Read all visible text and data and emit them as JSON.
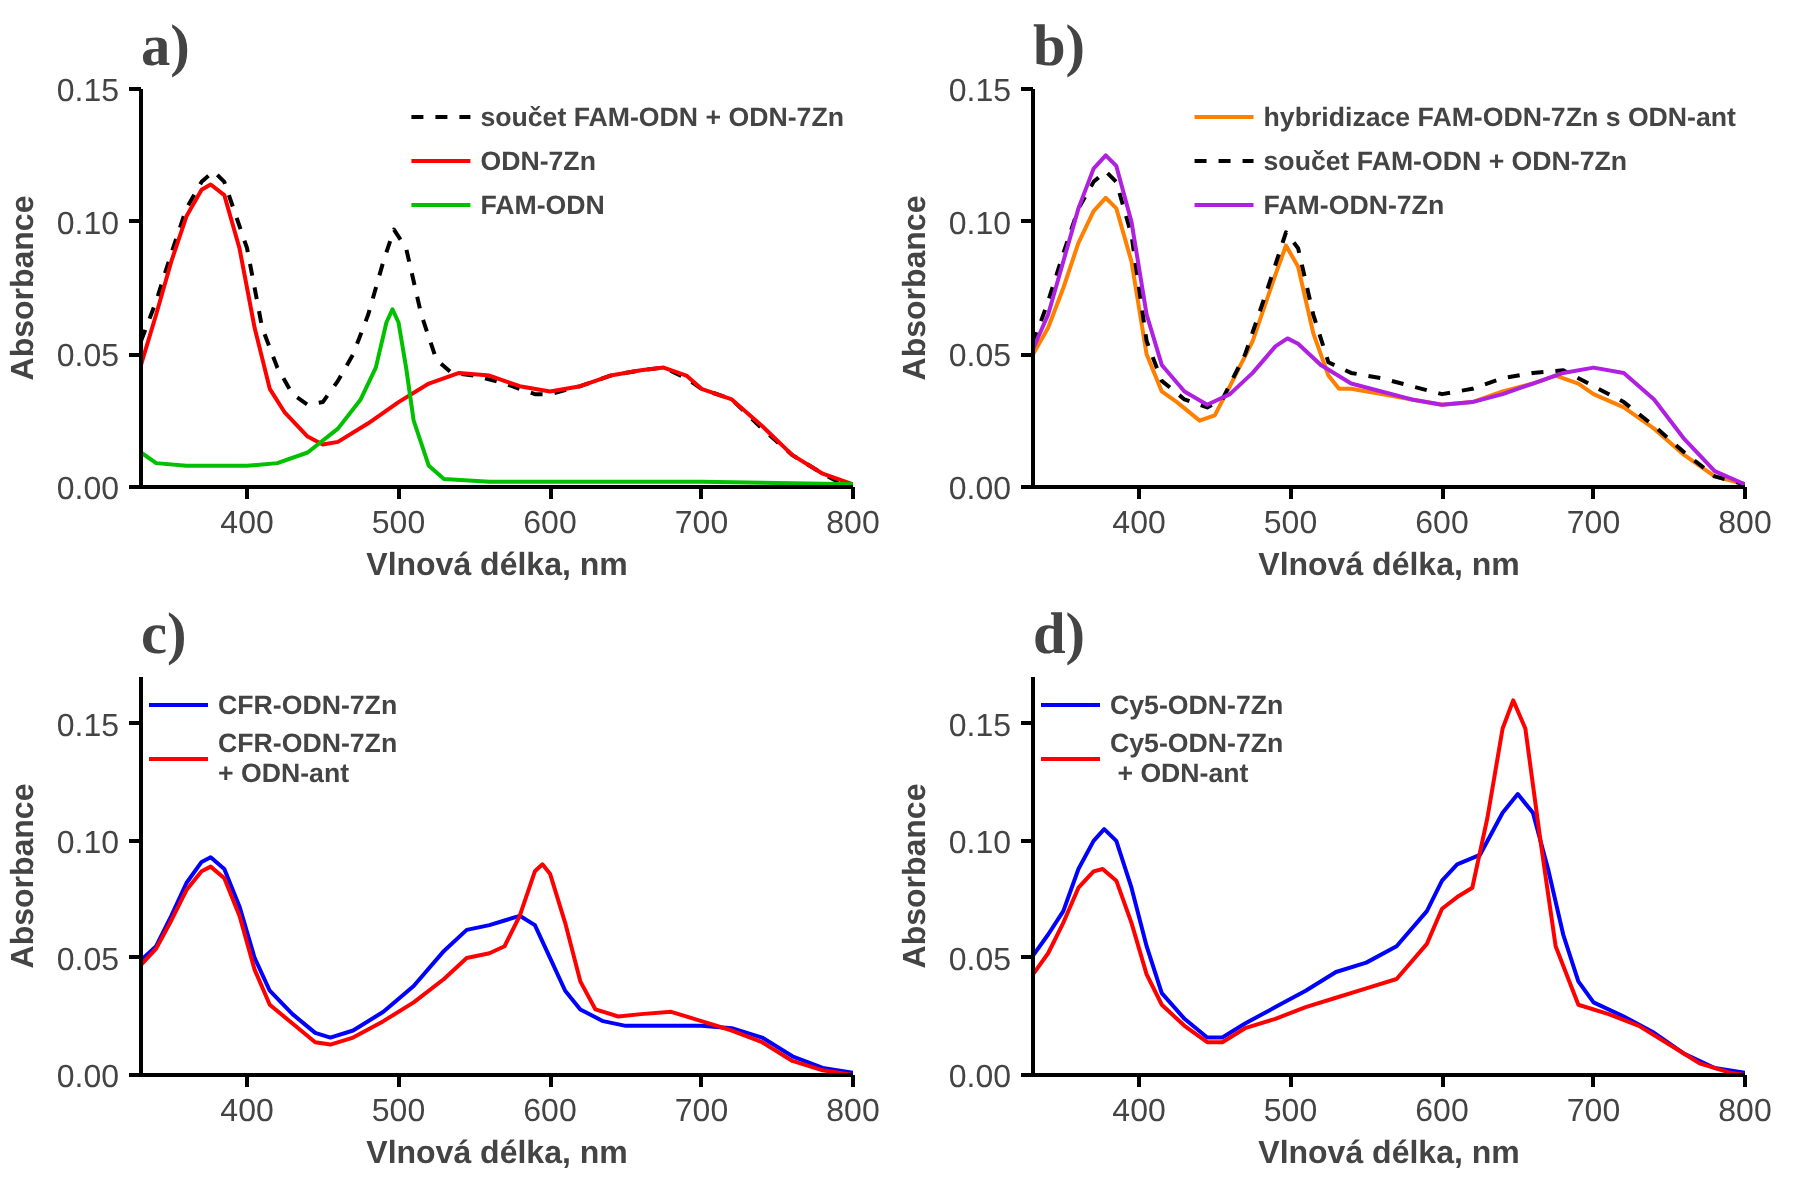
{
  "chart_data": [
    {
      "type": "line",
      "title": "a)",
      "xlabel": "Vlnová délka, nm",
      "ylabel": "Absorbance",
      "xlim": [
        330,
        800
      ],
      "ylim": [
        0,
        0.15
      ],
      "xticks": [
        400,
        500,
        600,
        700,
        800
      ],
      "yticks": [
        {
          "value": 0,
          "label": "0.00"
        },
        {
          "value": 0.05,
          "label": "0.05"
        },
        {
          "value": 0.1,
          "label": "0.10"
        },
        {
          "value": 0.15,
          "label": "0.15"
        }
      ],
      "grid": false,
      "legend": "top right",
      "marker": "none",
      "series": [
        {
          "name": "součet FAM-ODN + ODN-7Zn",
          "color": "#000000",
          "line_style": "dashed",
          "x": [
            330,
            340,
            350,
            360,
            370,
            378,
            385,
            400,
            410,
            420,
            430,
            440,
            450,
            460,
            470,
            480,
            490,
            497,
            505,
            515,
            525,
            535,
            550,
            570,
            590,
            600,
            620,
            640,
            660,
            675,
            690,
            700,
            720,
            740,
            760,
            780,
            790,
            800
          ],
          "values": [
            0.055,
            0.07,
            0.088,
            0.105,
            0.115,
            0.119,
            0.115,
            0.09,
            0.06,
            0.045,
            0.035,
            0.031,
            0.032,
            0.04,
            0.05,
            0.065,
            0.085,
            0.097,
            0.09,
            0.065,
            0.048,
            0.043,
            0.042,
            0.039,
            0.035,
            0.035,
            0.038,
            0.042,
            0.044,
            0.045,
            0.041,
            0.037,
            0.033,
            0.022,
            0.012,
            0.005,
            0.002,
            0.001
          ]
        },
        {
          "name": "ODN-7Zn",
          "color": "#ff0000",
          "line_style": "solid",
          "x": [
            330,
            340,
            350,
            360,
            370,
            376,
            385,
            395,
            405,
            415,
            425,
            440,
            450,
            460,
            480,
            500,
            520,
            540,
            560,
            580,
            600,
            620,
            640,
            660,
            675,
            690,
            700,
            720,
            740,
            760,
            780,
            800
          ],
          "values": [
            0.046,
            0.065,
            0.085,
            0.102,
            0.112,
            0.114,
            0.11,
            0.09,
            0.06,
            0.037,
            0.028,
            0.019,
            0.016,
            0.017,
            0.024,
            0.032,
            0.039,
            0.043,
            0.042,
            0.038,
            0.036,
            0.038,
            0.042,
            0.044,
            0.045,
            0.042,
            0.037,
            0.033,
            0.023,
            0.012,
            0.005,
            0.001
          ]
        },
        {
          "name": "FAM-ODN",
          "color": "#00c000",
          "line_style": "solid",
          "x": [
            330,
            340,
            360,
            380,
            400,
            420,
            440,
            460,
            475,
            485,
            492,
            496,
            500,
            505,
            510,
            520,
            530,
            560,
            600,
            700,
            800
          ],
          "values": [
            0.013,
            0.009,
            0.008,
            0.008,
            0.008,
            0.009,
            0.013,
            0.022,
            0.033,
            0.045,
            0.062,
            0.067,
            0.062,
            0.045,
            0.025,
            0.008,
            0.003,
            0.002,
            0.002,
            0.002,
            0.001
          ]
        }
      ]
    },
    {
      "type": "line",
      "title": "b)",
      "xlabel": "Vlnová délka, nm",
      "ylabel": "Absorbance",
      "xlim": [
        330,
        800
      ],
      "ylim": [
        0,
        0.15
      ],
      "xticks": [
        400,
        500,
        600,
        700,
        800
      ],
      "yticks": [
        {
          "value": 0,
          "label": "0.00"
        },
        {
          "value": 0.05,
          "label": "0.05"
        },
        {
          "value": 0.1,
          "label": "0.10"
        },
        {
          "value": 0.15,
          "label": "0.15"
        }
      ],
      "grid": false,
      "legend": "top right",
      "marker": "none",
      "series": [
        {
          "name": "hybridizace FAM-ODN-7Zn s ODN-ant",
          "color": "#ff8000",
          "line_style": "solid",
          "x": [
            330,
            340,
            350,
            360,
            370,
            378,
            385,
            395,
            405,
            415,
            425,
            440,
            450,
            460,
            475,
            490,
            497,
            505,
            515,
            525,
            532,
            540,
            560,
            580,
            600,
            620,
            640,
            660,
            675,
            690,
            700,
            720,
            740,
            760,
            780,
            800
          ],
          "values": [
            0.05,
            0.06,
            0.075,
            0.092,
            0.104,
            0.109,
            0.105,
            0.085,
            0.05,
            0.036,
            0.032,
            0.025,
            0.027,
            0.038,
            0.055,
            0.08,
            0.091,
            0.083,
            0.058,
            0.042,
            0.037,
            0.037,
            0.035,
            0.033,
            0.031,
            0.032,
            0.036,
            0.039,
            0.042,
            0.039,
            0.035,
            0.03,
            0.022,
            0.012,
            0.004,
            0.001
          ]
        },
        {
          "name": "součet FAM-ODN + ODN-7Zn",
          "color": "#000000",
          "line_style": "dashed",
          "x": [
            330,
            340,
            350,
            360,
            370,
            378,
            385,
            395,
            405,
            415,
            430,
            445,
            455,
            470,
            485,
            497,
            505,
            515,
            525,
            540,
            560,
            580,
            600,
            620,
            640,
            660,
            680,
            700,
            720,
            740,
            760,
            780,
            800
          ],
          "values": [
            0.054,
            0.07,
            0.088,
            0.105,
            0.115,
            0.119,
            0.115,
            0.095,
            0.055,
            0.04,
            0.033,
            0.03,
            0.033,
            0.05,
            0.075,
            0.096,
            0.09,
            0.065,
            0.047,
            0.043,
            0.041,
            0.038,
            0.035,
            0.037,
            0.041,
            0.043,
            0.044,
            0.038,
            0.032,
            0.023,
            0.013,
            0.004,
            0.001
          ]
        },
        {
          "name": "FAM-ODN-7Zn",
          "color": "#b020e0",
          "line_style": "solid",
          "x": [
            330,
            340,
            350,
            360,
            370,
            378,
            385,
            395,
            405,
            415,
            430,
            445,
            460,
            475,
            490,
            498,
            505,
            520,
            540,
            560,
            580,
            600,
            620,
            640,
            660,
            680,
            700,
            720,
            740,
            760,
            780,
            800
          ],
          "values": [
            0.052,
            0.065,
            0.085,
            0.105,
            0.12,
            0.125,
            0.121,
            0.1,
            0.065,
            0.046,
            0.036,
            0.031,
            0.035,
            0.043,
            0.053,
            0.056,
            0.054,
            0.046,
            0.039,
            0.036,
            0.033,
            0.031,
            0.032,
            0.035,
            0.039,
            0.043,
            0.045,
            0.043,
            0.033,
            0.018,
            0.006,
            0.001
          ]
        }
      ]
    },
    {
      "type": "line",
      "title": "c)",
      "xlabel": "Vlnová délka, nm",
      "ylabel": "Absorbance",
      "xlim": [
        330,
        800
      ],
      "ylim": [
        0,
        0.17
      ],
      "xticks": [
        400,
        500,
        600,
        700,
        800
      ],
      "yticks": [
        {
          "value": 0,
          "label": "0.00"
        },
        {
          "value": 0.05,
          "label": "0.05"
        },
        {
          "value": 0.1,
          "label": "0.10"
        },
        {
          "value": 0.15,
          "label": "0.15"
        }
      ],
      "grid": false,
      "legend": "top left",
      "marker": "none",
      "series": [
        {
          "name": "CFR-ODN-7Zn",
          "color": "#0000ff",
          "line_style": "solid",
          "x": [
            330,
            340,
            350,
            360,
            370,
            376,
            385,
            395,
            405,
            415,
            430,
            445,
            455,
            470,
            490,
            510,
            530,
            545,
            560,
            570,
            580,
            590,
            600,
            610,
            620,
            635,
            650,
            680,
            700,
            720,
            740,
            760,
            780,
            800
          ],
          "values": [
            0.049,
            0.055,
            0.068,
            0.082,
            0.091,
            0.093,
            0.088,
            0.072,
            0.05,
            0.036,
            0.026,
            0.018,
            0.016,
            0.019,
            0.027,
            0.038,
            0.053,
            0.062,
            0.064,
            0.066,
            0.068,
            0.064,
            0.05,
            0.036,
            0.028,
            0.023,
            0.021,
            0.021,
            0.021,
            0.02,
            0.016,
            0.008,
            0.003,
            0.001
          ]
        },
        {
          "name": "CFR-ODN-7Zn\n+ ODN-ant",
          "color": "#ff0000",
          "line_style": "solid",
          "x": [
            330,
            340,
            350,
            360,
            370,
            376,
            385,
            395,
            405,
            415,
            430,
            445,
            455,
            470,
            490,
            510,
            530,
            545,
            560,
            570,
            580,
            590,
            595,
            600,
            610,
            620,
            630,
            645,
            660,
            680,
            700,
            720,
            740,
            760,
            780,
            800
          ],
          "values": [
            0.047,
            0.054,
            0.066,
            0.079,
            0.087,
            0.089,
            0.084,
            0.068,
            0.045,
            0.03,
            0.022,
            0.014,
            0.013,
            0.016,
            0.023,
            0.031,
            0.041,
            0.05,
            0.052,
            0.055,
            0.068,
            0.087,
            0.09,
            0.086,
            0.065,
            0.04,
            0.028,
            0.025,
            0.026,
            0.027,
            0.023,
            0.019,
            0.014,
            0.006,
            0.002,
            0.0
          ]
        }
      ]
    },
    {
      "type": "line",
      "title": "d)",
      "xlabel": "Vlnová délka, nm",
      "ylabel": "Absorbance",
      "xlim": [
        330,
        800
      ],
      "ylim": [
        0,
        0.17
      ],
      "xticks": [
        400,
        500,
        600,
        700,
        800
      ],
      "yticks": [
        {
          "value": 0,
          "label": "0.00"
        },
        {
          "value": 0.05,
          "label": "0.05"
        },
        {
          "value": 0.1,
          "label": "0.10"
        },
        {
          "value": 0.15,
          "label": "0.15"
        }
      ],
      "grid": false,
      "legend": "top left",
      "marker": "none",
      "series": [
        {
          "name": "Cy5-ODN-7Zn",
          "color": "#0000ff",
          "line_style": "solid",
          "x": [
            330,
            340,
            350,
            360,
            370,
            377,
            385,
            395,
            405,
            415,
            430,
            445,
            455,
            470,
            490,
            510,
            530,
            550,
            570,
            590,
            600,
            610,
            625,
            640,
            650,
            660,
            670,
            680,
            690,
            700,
            720,
            740,
            760,
            780,
            800
          ],
          "values": [
            0.051,
            0.06,
            0.07,
            0.088,
            0.1,
            0.105,
            0.1,
            0.08,
            0.055,
            0.035,
            0.024,
            0.016,
            0.016,
            0.022,
            0.029,
            0.036,
            0.044,
            0.048,
            0.055,
            0.07,
            0.083,
            0.09,
            0.094,
            0.112,
            0.12,
            0.112,
            0.088,
            0.06,
            0.04,
            0.031,
            0.025,
            0.018,
            0.009,
            0.003,
            0.001
          ]
        },
        {
          "name": "Cy5-ODN-7Zn\n + ODN-ant",
          "color": "#ff0000",
          "line_style": "solid",
          "x": [
            330,
            340,
            350,
            360,
            370,
            376,
            385,
            395,
            405,
            415,
            430,
            445,
            455,
            470,
            490,
            510,
            530,
            550,
            570,
            590,
            600,
            610,
            620,
            630,
            640,
            647,
            655,
            665,
            675,
            690,
            710,
            730,
            750,
            770,
            790,
            800
          ],
          "values": [
            0.043,
            0.052,
            0.065,
            0.08,
            0.087,
            0.088,
            0.083,
            0.065,
            0.043,
            0.03,
            0.021,
            0.014,
            0.014,
            0.02,
            0.024,
            0.029,
            0.033,
            0.037,
            0.041,
            0.056,
            0.071,
            0.076,
            0.08,
            0.11,
            0.148,
            0.16,
            0.148,
            0.1,
            0.055,
            0.03,
            0.026,
            0.021,
            0.013,
            0.005,
            0.001,
            0.0
          ]
        }
      ]
    }
  ]
}
